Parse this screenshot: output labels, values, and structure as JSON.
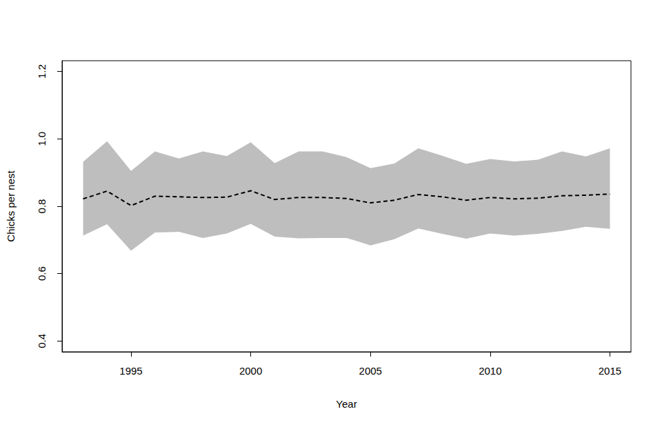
{
  "chart_data": {
    "type": "line",
    "x_label": "Year",
    "y_label": "Chicks per nest",
    "x": [
      1993,
      1994,
      1995,
      1996,
      1997,
      1998,
      1999,
      2000,
      2001,
      2002,
      2003,
      2004,
      2005,
      2006,
      2007,
      2008,
      2009,
      2010,
      2011,
      2012,
      2013,
      2014,
      2015
    ],
    "values": [
      0.822,
      0.845,
      0.802,
      0.83,
      0.828,
      0.826,
      0.827,
      0.846,
      0.82,
      0.826,
      0.826,
      0.823,
      0.81,
      0.818,
      0.835,
      0.828,
      0.818,
      0.826,
      0.822,
      0.824,
      0.831,
      0.833,
      0.836
    ],
    "lower": [
      0.713,
      0.747,
      0.668,
      0.722,
      0.724,
      0.706,
      0.719,
      0.748,
      0.71,
      0.705,
      0.706,
      0.706,
      0.684,
      0.702,
      0.734,
      0.718,
      0.704,
      0.719,
      0.713,
      0.718,
      0.727,
      0.739,
      0.733
    ],
    "upper": [
      0.932,
      0.993,
      0.905,
      0.963,
      0.942,
      0.963,
      0.949,
      0.99,
      0.928,
      0.963,
      0.963,
      0.946,
      0.913,
      0.927,
      0.972,
      0.95,
      0.926,
      0.94,
      0.933,
      0.938,
      0.963,
      0.948,
      0.972
    ],
    "color": "#000000",
    "band_color": "#bebebe",
    "line_style": "dashed",
    "xlim": [
      1992.12,
      2015.88
    ],
    "xticks": [
      1995,
      2000,
      2005,
      2010,
      2015
    ],
    "ylim": [
      0.368,
      1.232
    ],
    "yticks": [
      0.4,
      0.6,
      0.8,
      {
        "value": 1,
        "label": "1.0"
      },
      1.2
    ],
    "grid": false
  }
}
